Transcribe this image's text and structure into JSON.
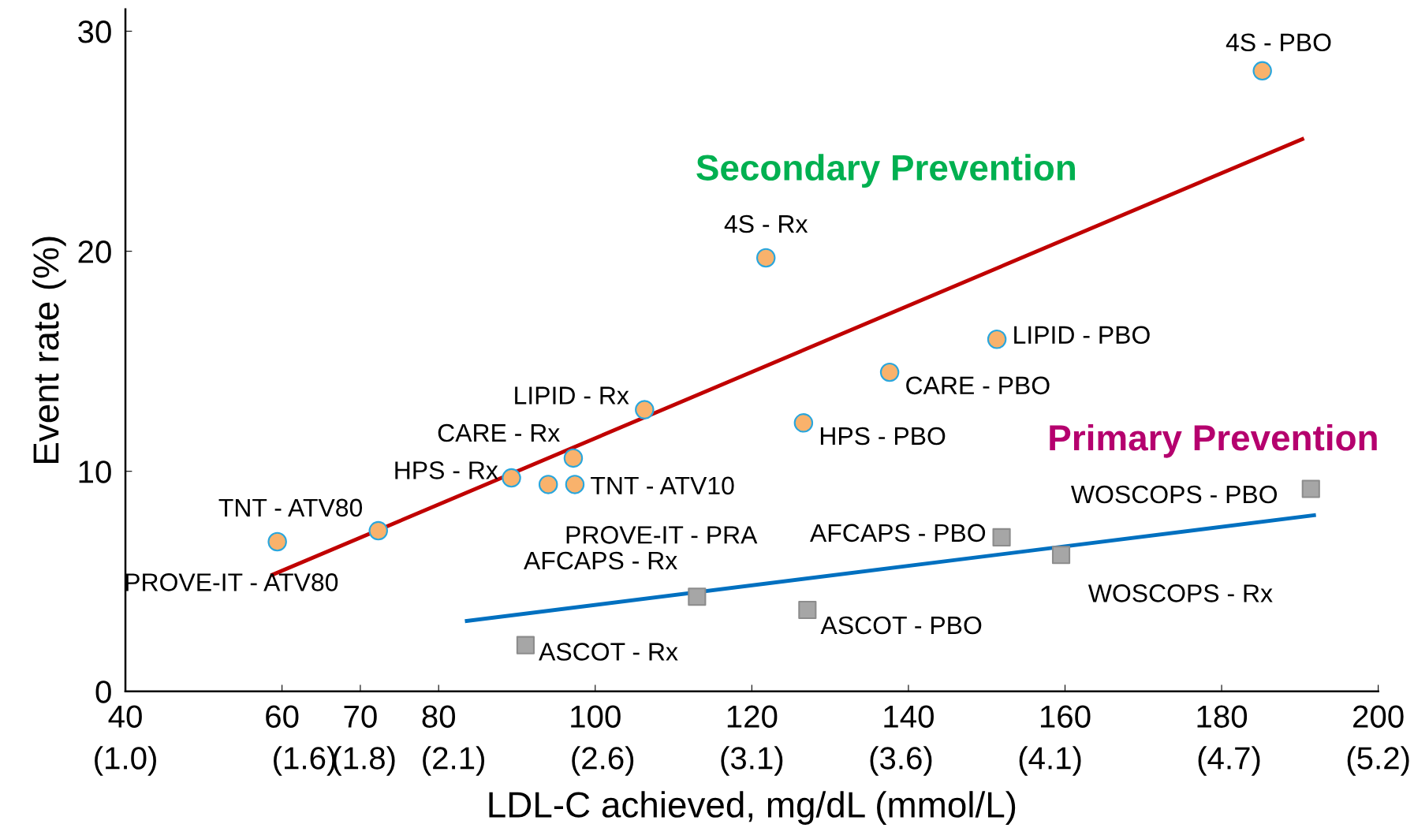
{
  "chart_data": {
    "type": "scatter",
    "xlabel": "LDL-C achieved, mg/dL (mmol/L)",
    "ylabel": "Event rate (%)",
    "xlim": [
      40,
      200
    ],
    "ylim": [
      0,
      31
    ],
    "xticks": [
      40,
      60,
      70,
      80,
      100,
      120,
      140,
      160,
      180,
      200
    ],
    "x2lim": [
      1.0,
      5.2
    ],
    "x2ticks": [
      {
        "value": 1.0,
        "label": "(1.0)"
      },
      {
        "value": 1.6,
        "label": "(1.6)"
      },
      {
        "value": 1.8,
        "label": "(1.8)"
      },
      {
        "value": 2.1,
        "label": "(2.1)"
      },
      {
        "value": 2.6,
        "label": "(2.6)"
      },
      {
        "value": 3.1,
        "label": "(3.1)"
      },
      {
        "value": 3.6,
        "label": "(3.6)"
      },
      {
        "value": 4.1,
        "label": "(4.1)"
      },
      {
        "value": 4.7,
        "label": "(4.7)"
      },
      {
        "value": 5.2,
        "label": "(5.2)"
      }
    ],
    "yticks": [
      0,
      10,
      20,
      30
    ],
    "grid": false,
    "legend": false,
    "series": [
      {
        "type": "line",
        "color": "#c00000",
        "x": [
          58.8,
          190.3
        ],
        "values": [
          5.3,
          25.1
        ],
        "marker": "none"
      },
      {
        "type": "line",
        "color": "#0070c0",
        "x": [
          83.6,
          191.8
        ],
        "values": [
          3.2,
          8.0
        ],
        "marker": "none"
      },
      {
        "type": "scatter",
        "color": "#f9b26c",
        "marker": "circle",
        "x": [
          59.4,
          72.3,
          89.3,
          94.0,
          97.4,
          97.2,
          106.3,
          121.8,
          126.6,
          137.6,
          151.3,
          185.2
        ],
        "values": [
          6.8,
          7.3,
          9.7,
          9.4,
          9.4,
          10.6,
          12.8,
          19.7,
          12.2,
          14.5,
          16.0,
          28.2
        ]
      },
      {
        "type": "scatter",
        "color": "#a6a6a6",
        "marker": "square",
        "x": [
          91.1,
          113.0,
          127.1,
          151.9,
          159.5,
          191.4
        ],
        "values": [
          2.1,
          4.3,
          3.7,
          7.0,
          6.2,
          9.2
        ]
      }
    ],
    "annotations": [
      {
        "text": "PROVE-IT - ATV80",
        "x": 59.4,
        "y": 6.8
      },
      {
        "text": "TNT - ATV80",
        "x": 72.3,
        "y": 7.3
      },
      {
        "text": "HPS - Rx",
        "x": 89.3,
        "y": 9.7
      },
      {
        "text": "PROVE-IT - PRA",
        "x": 94.0,
        "y": 9.4
      },
      {
        "text": "TNT - ATV10",
        "x": 97.4,
        "y": 9.4
      },
      {
        "text": "CARE - Rx",
        "x": 97.2,
        "y": 10.6
      },
      {
        "text": "LIPID - Rx",
        "x": 106.3,
        "y": 12.8
      },
      {
        "text": "4S - Rx",
        "x": 121.8,
        "y": 19.7
      },
      {
        "text": "HPS - PBO",
        "x": 126.6,
        "y": 12.2
      },
      {
        "text": "CARE - PBO",
        "x": 137.6,
        "y": 14.5
      },
      {
        "text": "LIPID - PBO",
        "x": 151.3,
        "y": 16.0
      },
      {
        "text": "4S - PBO",
        "x": 185.2,
        "y": 28.2
      },
      {
        "text": "ASCOT - Rx",
        "x": 91.1,
        "y": 2.1
      },
      {
        "text": "AFCAPS - Rx",
        "x": 113.0,
        "y": 4.3
      },
      {
        "text": "ASCOT - PBO",
        "x": 127.1,
        "y": 3.7
      },
      {
        "text": "AFCAPS - PBO",
        "x": 151.9,
        "y": 7.0
      },
      {
        "text": "WOSCOPS - Rx",
        "x": 159.5,
        "y": 6.2
      },
      {
        "text": "WOSCOPS - PBO",
        "x": 191.4,
        "y": 9.2
      },
      "Secondary Prevention",
      "Primary Prevention"
    ]
  }
}
